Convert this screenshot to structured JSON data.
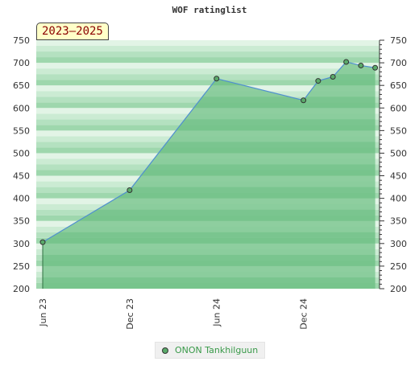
{
  "chart_data": {
    "type": "area",
    "title": "WOF ratinglist",
    "period_label": "2023–2025",
    "x_ticks": [
      "Jun 23",
      "Dec 23",
      "Jun 24",
      "Dec 24"
    ],
    "xlim": [
      "2023-06-01",
      "2025-04-30"
    ],
    "ylim": [
      200,
      750
    ],
    "y_ticks": [
      200,
      250,
      300,
      350,
      400,
      450,
      500,
      550,
      600,
      650,
      700,
      750
    ],
    "grid": true,
    "legend_position": "bottom-center",
    "series": [
      {
        "name": "ONON Tankhilguun",
        "color": "#5aaa6a",
        "x": [
          "2023-06-01",
          "2023-12-01",
          "2024-06-01",
          "2024-12-01",
          "2025-01-01",
          "2025-02-01",
          "2025-03-01",
          "2025-04-01",
          "2025-05-01"
        ],
        "y": [
          303,
          418,
          665,
          617,
          660,
          669,
          702,
          694,
          689
        ]
      }
    ]
  }
}
